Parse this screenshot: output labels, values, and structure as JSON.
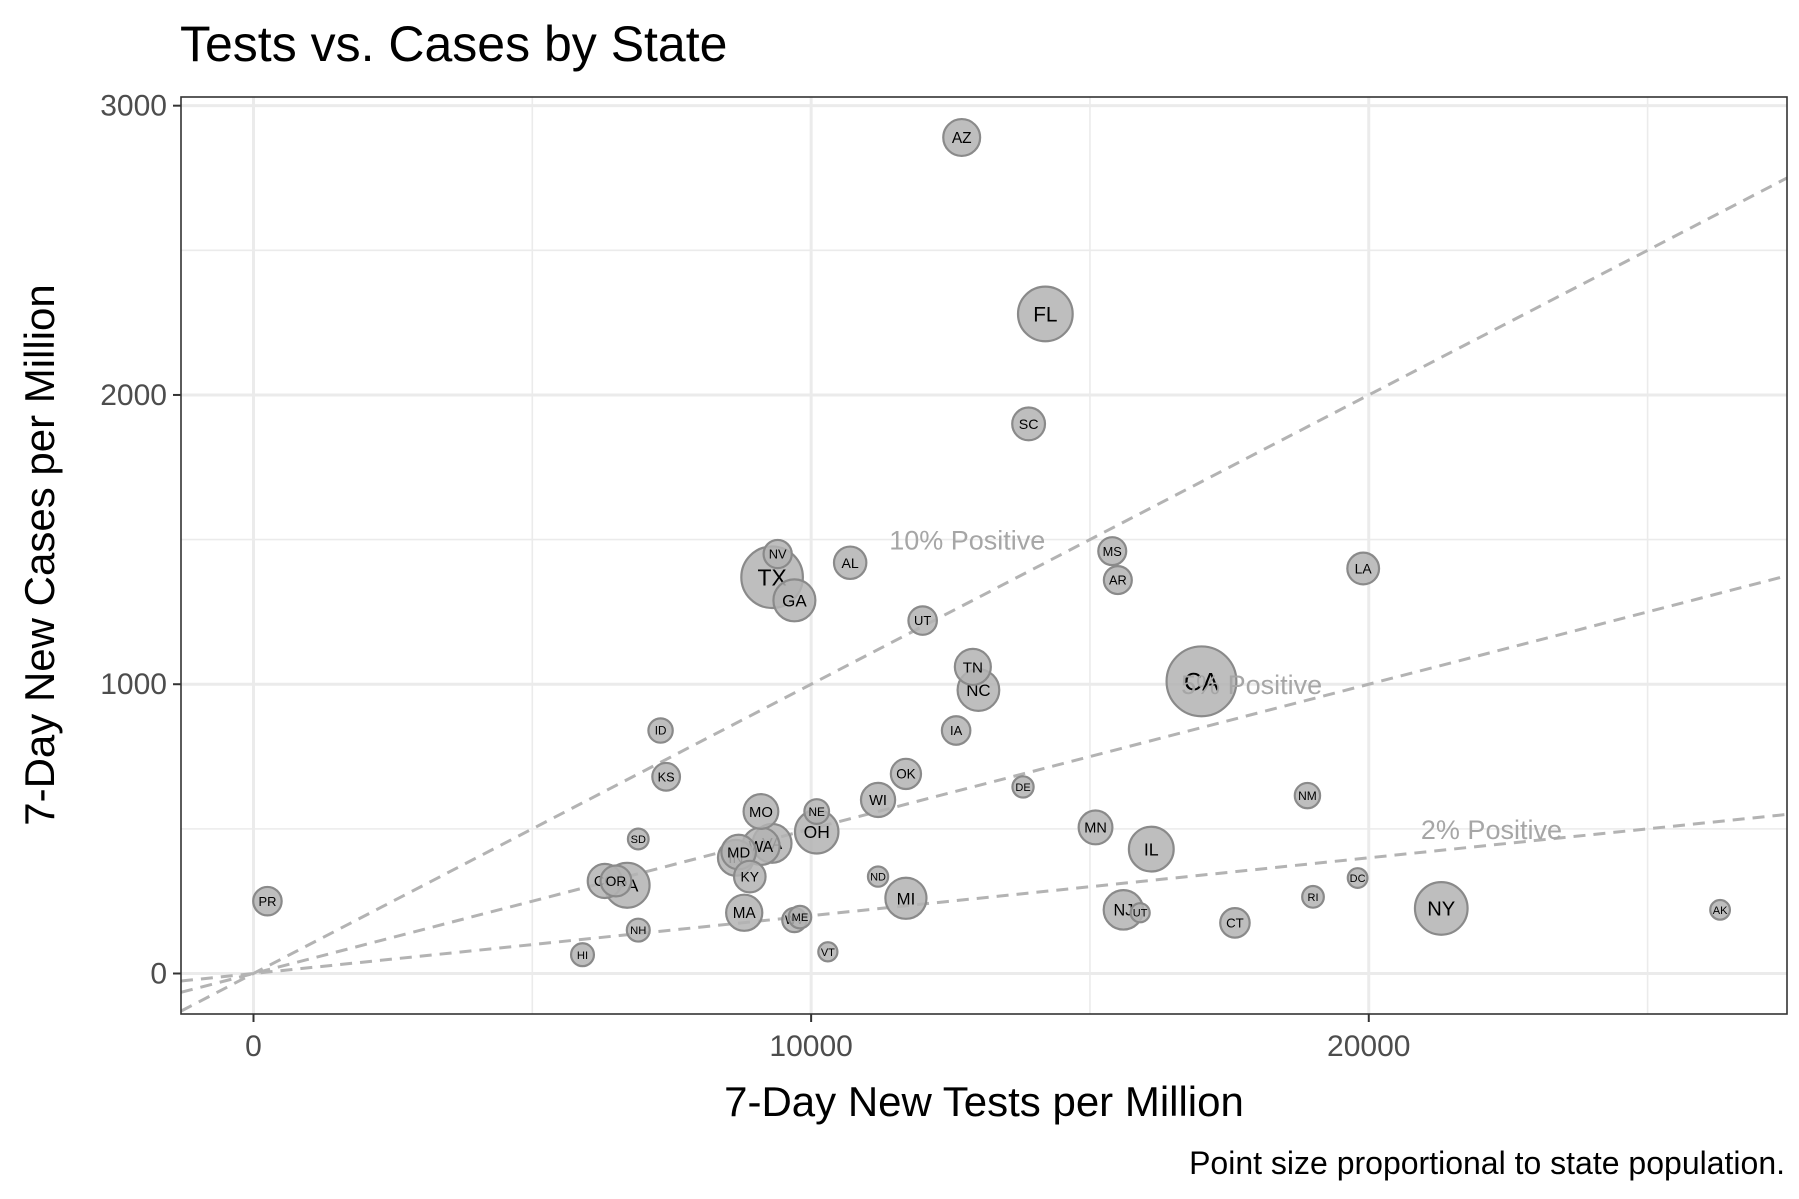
{
  "chart_data": {
    "type": "scatter",
    "title": "Tests vs. Cases by State",
    "xlabel": "7-Day New Tests per Million",
    "ylabel": "7-Day New Cases per Million",
    "caption": "Point size proportional to state population.",
    "xlim": [
      -1300,
      27500
    ],
    "ylim": [
      -140,
      3030
    ],
    "x_ticks": [
      0,
      10000,
      20000
    ],
    "x_tick_labels": [
      "0",
      "10000",
      "20000"
    ],
    "y_ticks": [
      0,
      1000,
      2000,
      3000
    ],
    "y_tick_labels": [
      "0",
      "1000",
      "2000",
      "3000"
    ],
    "grid": true,
    "reference_lines": [
      {
        "rate": 0.1,
        "label": "10% Positive",
        "label_at": [
          12800,
          1500
        ]
      },
      {
        "rate": 0.05,
        "label": "5% Positive",
        "label_at": [
          17900,
          1000
        ]
      },
      {
        "rate": 0.02,
        "label": "2% Positive",
        "label_at": [
          22200,
          500
        ]
      }
    ],
    "points": [
      {
        "state": "AZ",
        "x": 12700,
        "y": 2890,
        "pop": 7.3
      },
      {
        "state": "FL",
        "x": 14200,
        "y": 2280,
        "pop": 21.5
      },
      {
        "state": "SC",
        "x": 13900,
        "y": 1900,
        "pop": 5.1
      },
      {
        "state": "NV",
        "x": 9400,
        "y": 1450,
        "pop": 3.1
      },
      {
        "state": "TX",
        "x": 9300,
        "y": 1370,
        "pop": 29.0
      },
      {
        "state": "AL",
        "x": 10700,
        "y": 1420,
        "pop": 4.9
      },
      {
        "state": "GA",
        "x": 9700,
        "y": 1290,
        "pop": 10.6
      },
      {
        "state": "MS",
        "x": 15400,
        "y": 1460,
        "pop": 3.0
      },
      {
        "state": "AR",
        "x": 15500,
        "y": 1360,
        "pop": 3.0
      },
      {
        "state": "LA",
        "x": 19900,
        "y": 1400,
        "pop": 4.6
      },
      {
        "state": "UT",
        "x": 12000,
        "y": 1220,
        "pop": 3.2
      },
      {
        "state": "TN",
        "x": 12900,
        "y": 1060,
        "pop": 6.8
      },
      {
        "state": "NC",
        "x": 13000,
        "y": 980,
        "pop": 10.4
      },
      {
        "state": "CA",
        "x": 17000,
        "y": 1010,
        "pop": 39.5
      },
      {
        "state": "IA",
        "x": 12600,
        "y": 840,
        "pop": 3.2
      },
      {
        "state": "ID",
        "x": 7300,
        "y": 840,
        "pop": 1.8
      },
      {
        "state": "KS",
        "x": 7400,
        "y": 680,
        "pop": 2.9
      },
      {
        "state": "OK",
        "x": 11700,
        "y": 690,
        "pop": 3.9
      },
      {
        "state": "DE",
        "x": 13800,
        "y": 645,
        "pop": 1.0
      },
      {
        "state": "WI",
        "x": 11200,
        "y": 600,
        "pop": 5.8
      },
      {
        "state": "NM",
        "x": 18900,
        "y": 615,
        "pop": 2.1
      },
      {
        "state": "MO",
        "x": 9100,
        "y": 560,
        "pop": 6.1
      },
      {
        "state": "NE",
        "x": 10100,
        "y": 560,
        "pop": 1.9
      },
      {
        "state": "OH",
        "x": 10100,
        "y": 490,
        "pop": 11.7
      },
      {
        "state": "MN",
        "x": 15100,
        "y": 505,
        "pop": 5.6
      },
      {
        "state": "SD",
        "x": 6900,
        "y": 465,
        "pop": 0.9
      },
      {
        "state": "IL",
        "x": 16100,
        "y": 430,
        "pop": 12.7
      },
      {
        "state": "VA",
        "x": 9300,
        "y": 450,
        "pop": 8.5
      },
      {
        "state": "WA",
        "x": 9100,
        "y": 440,
        "pop": 7.6
      },
      {
        "state": "MD",
        "x": 8700,
        "y": 420,
        "pop": 6.0
      },
      {
        "state": "IN",
        "x": 8650,
        "y": 400,
        "pop": 6.7
      },
      {
        "state": "ND",
        "x": 11200,
        "y": 335,
        "pop": 0.8
      },
      {
        "state": "DC",
        "x": 19800,
        "y": 330,
        "pop": 0.7
      },
      {
        "state": "KY",
        "x": 8900,
        "y": 335,
        "pop": 4.5
      },
      {
        "state": "CO",
        "x": 6300,
        "y": 320,
        "pop": 5.8
      },
      {
        "state": "OR",
        "x": 6500,
        "y": 320,
        "pop": 4.2
      },
      {
        "state": "PA",
        "x": 6700,
        "y": 305,
        "pop": 12.8
      },
      {
        "state": "PR",
        "x": 250,
        "y": 250,
        "pop": 3.2
      },
      {
        "state": "MI",
        "x": 11700,
        "y": 260,
        "pop": 10.0
      },
      {
        "state": "RI",
        "x": 19000,
        "y": 265,
        "pop": 1.1
      },
      {
        "state": "NY",
        "x": 21300,
        "y": 225,
        "pop": 19.5
      },
      {
        "state": "AK",
        "x": 26300,
        "y": 220,
        "pop": 0.7
      },
      {
        "state": "NJ",
        "x": 15600,
        "y": 220,
        "pop": 8.9
      },
      {
        "state": "UT",
        "x": 15900,
        "y": 210,
        "pop": 0.6
      },
      {
        "state": "MA",
        "x": 8800,
        "y": 210,
        "pop": 6.9
      },
      {
        "state": "ME",
        "x": 9800,
        "y": 195,
        "pop": 1.3
      },
      {
        "state": "WV",
        "x": 9700,
        "y": 185,
        "pop": 1.8
      },
      {
        "state": "CT",
        "x": 17600,
        "y": 175,
        "pop": 3.6
      },
      {
        "state": "NH",
        "x": 6900,
        "y": 150,
        "pop": 1.4
      },
      {
        "state": "VT",
        "x": 10300,
        "y": 75,
        "pop": 0.6
      },
      {
        "state": "HI",
        "x": 5900,
        "y": 65,
        "pop": 1.4
      }
    ]
  }
}
